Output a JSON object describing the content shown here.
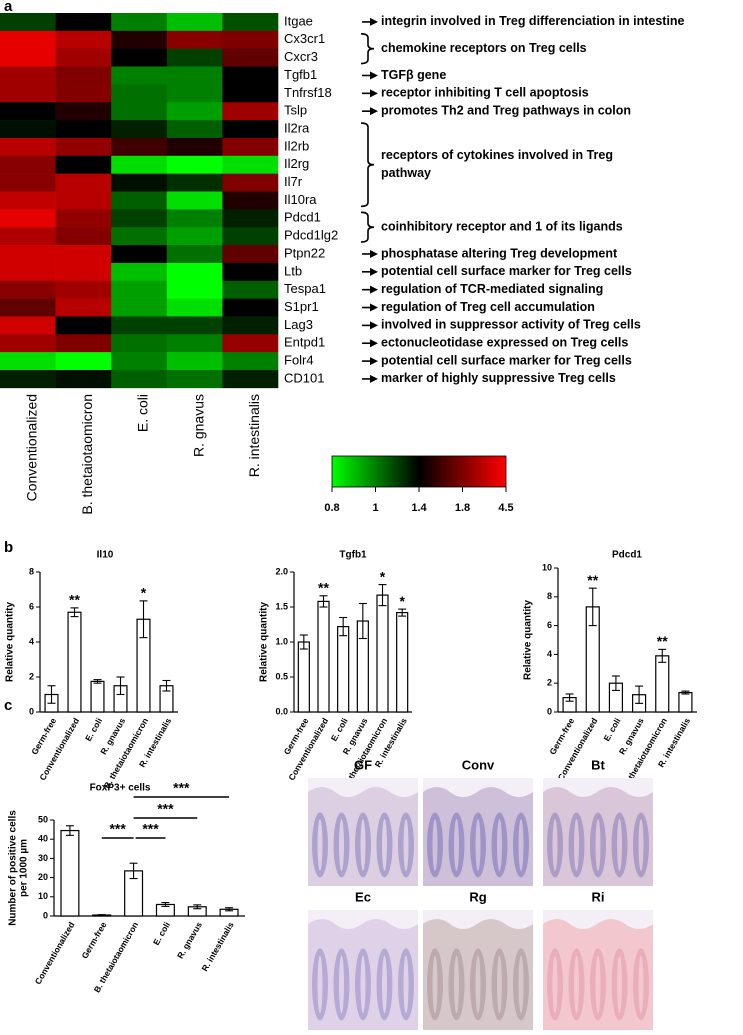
{
  "panel_labels": [
    "a",
    "b",
    "c"
  ],
  "micrographs": [
    "GF",
    "Conv",
    "Bt",
    "Ec",
    "Rg",
    "Ri"
  ],
  "chart_data": [
    {
      "type": "heatmap",
      "rows": [
        "Itgae",
        "Cx3cr1",
        "Cxcr3",
        "Tgfb1",
        "Tnfrsf18",
        "Tslp",
        "Il2ra",
        "Il2rb",
        "Il2rg",
        "Il7r",
        "Il10ra",
        "Pdcd1",
        "Pdcd1lg2",
        "Ptpn22",
        "Ltb",
        "Tespa1",
        "S1pr1",
        "Lag3",
        "Entpd1",
        "Folr4",
        "CD101"
      ],
      "columns": [
        "Conventionalized",
        "B. thetaiotaomicron",
        "E. coli",
        "R. gnavus",
        "R. intestinalis"
      ],
      "values": [
        [
          1.2,
          1.4,
          1.0,
          0.9,
          1.15
        ],
        [
          4.0,
          3.0,
          1.5,
          2.0,
          1.8
        ],
        [
          4.0,
          2.5,
          1.4,
          1.2,
          1.7
        ],
        [
          2.5,
          1.8,
          1.0,
          1.0,
          1.4
        ],
        [
          2.5,
          1.9,
          1.05,
          1.0,
          1.4
        ],
        [
          1.4,
          1.5,
          1.05,
          0.95,
          2.5
        ],
        [
          1.35,
          1.4,
          1.3,
          1.1,
          1.4
        ],
        [
          3.0,
          2.2,
          1.6,
          1.5,
          1.9
        ],
        [
          2.0,
          1.4,
          0.85,
          0.8,
          0.85
        ],
        [
          2.0,
          3.0,
          1.35,
          1.25,
          1.8
        ],
        [
          3.2,
          3.0,
          1.1,
          0.85,
          1.5
        ],
        [
          4.0,
          2.2,
          1.2,
          1.0,
          1.3
        ],
        [
          2.8,
          1.9,
          1.05,
          0.95,
          1.2
        ],
        [
          3.5,
          3.5,
          1.4,
          1.05,
          1.7
        ],
        [
          3.5,
          3.5,
          0.9,
          0.8,
          1.4
        ],
        [
          2.0,
          2.5,
          0.95,
          0.8,
          1.1
        ],
        [
          1.7,
          3.0,
          0.95,
          0.85,
          1.4
        ],
        [
          3.5,
          1.4,
          1.2,
          1.2,
          1.3
        ],
        [
          2.5,
          1.8,
          1.05,
          1.0,
          2.3
        ],
        [
          0.85,
          0.8,
          1.0,
          0.9,
          1.0
        ],
        [
          1.3,
          1.35,
          1.1,
          1.05,
          1.3
        ]
      ],
      "colorbar": {
        "ticks": [
          0.8,
          1,
          1.4,
          1.8,
          4.5
        ],
        "colors": [
          "#00ff00",
          "#000000",
          "#ff0000"
        ]
      },
      "annotations": [
        {
          "lines": [
            "integrin involved in Treg differenciation in intestine"
          ]
        },
        {
          "lines": [
            "chemokine receptors on Treg cells"
          ]
        },
        {
          "lines": [
            "TGFβ gene"
          ]
        },
        {
          "lines": [
            "receptor inhibiting T cell apoptosis"
          ]
        },
        {
          "lines": [
            "promotes Th2 and Treg pathways in colon"
          ]
        },
        {
          "lines": [
            "receptors of cytokines involved in Treg",
            "pathway"
          ]
        },
        {
          "lines": [
            "coinhibitory receptor and 1 of its ligands"
          ]
        },
        {
          "lines": [
            "phosphatase altering Treg development"
          ]
        },
        {
          "lines": [
            "potential cell surface marker for Treg cells"
          ]
        },
        {
          "lines": [
            "regulation of TCR-mediated signaling"
          ]
        },
        {
          "lines": [
            "regulation of Treg cell accumulation"
          ]
        },
        {
          "lines": [
            "involved in suppressor activity of Treg cells"
          ]
        },
        {
          "lines": [
            "ectonucleotidase expressed on Treg cells"
          ]
        },
        {
          "lines": [
            "potential cell surface marker for Treg cells"
          ]
        },
        {
          "lines": [
            "marker of highly suppressive Treg cells"
          ]
        }
      ]
    },
    {
      "type": "bar",
      "title": "Il10",
      "ylabel": [
        "Relative quantity"
      ],
      "color": "#ffffff",
      "categories": [
        "Germ-free",
        "Conventionalized",
        "E. coli",
        "R. gnavus",
        "B. thetaiotaomicron",
        "R. intestinalis"
      ],
      "values": [
        1.0,
        5.7,
        1.75,
        1.5,
        5.3,
        1.5
      ],
      "errors": [
        0.5,
        0.25,
        0.1,
        0.5,
        1.05,
        0.3
      ],
      "significance": [
        null,
        "**",
        null,
        null,
        "*",
        null
      ],
      "ylim": [
        0,
        8
      ],
      "yticks": [
        0,
        2,
        4,
        6,
        8
      ]
    },
    {
      "type": "bar",
      "title": "Tgfb1",
      "ylabel": [
        "Relative quantity"
      ],
      "color": "#ffffff",
      "categories": [
        "Germ-free",
        "Conventionalized",
        "E. coli",
        "R. gnavus",
        "B. thetaiotaomicron",
        "R. intestinalis"
      ],
      "values": [
        1.0,
        1.58,
        1.22,
        1.3,
        1.67,
        1.42
      ],
      "errors": [
        0.1,
        0.08,
        0.13,
        0.25,
        0.15,
        0.05
      ],
      "significance": [
        null,
        "**",
        null,
        null,
        "*",
        "*"
      ],
      "ylim": [
        0,
        2
      ],
      "yticks": [
        {
          "value": 0,
          "label": "0.0"
        },
        0.5,
        {
          "value": 1,
          "label": "1.0"
        },
        1.5,
        {
          "value": 2,
          "label": "2.0"
        }
      ]
    },
    {
      "type": "bar",
      "title": "Pdcd1",
      "ylabel": [
        "Relative quantity"
      ],
      "color": "#ffffff",
      "categories": [
        "Germ-free",
        "Conventionalized",
        "E. coli",
        "R. gnavus",
        "B. thetaiotaomicron",
        "R. intestinalis"
      ],
      "values": [
        1.0,
        7.3,
        2.0,
        1.2,
        3.9,
        1.35
      ],
      "errors": [
        0.25,
        1.3,
        0.5,
        0.6,
        0.45,
        0.1
      ],
      "significance": [
        null,
        "**",
        null,
        null,
        "**",
        null
      ],
      "ylim": [
        0,
        10
      ],
      "yticks": [
        0,
        2,
        4,
        6,
        8,
        10
      ]
    },
    {
      "type": "bar",
      "title": "FoxP3+ cells",
      "ylabel": [
        "Number of positive cells",
        "per 1000 µm"
      ],
      "color": "#ffffff",
      "categories": [
        "Conventionalized",
        "Germ-free",
        "B. thetaiotaomicron",
        "E. coli",
        "R. gnavus",
        "R. intestinalis"
      ],
      "values": [
        44.5,
        0.5,
        23.5,
        6,
        4.8,
        3.5
      ],
      "errors": [
        2.5,
        0.2,
        4,
        1,
        1,
        0.8
      ],
      "significance": [
        null,
        null,
        null,
        null,
        null,
        null
      ],
      "comparisons": [
        "***",
        "***",
        "***",
        "***"
      ],
      "ylim": [
        0,
        50
      ],
      "yticks": [
        0,
        10,
        20,
        30,
        40,
        50
      ]
    }
  ]
}
